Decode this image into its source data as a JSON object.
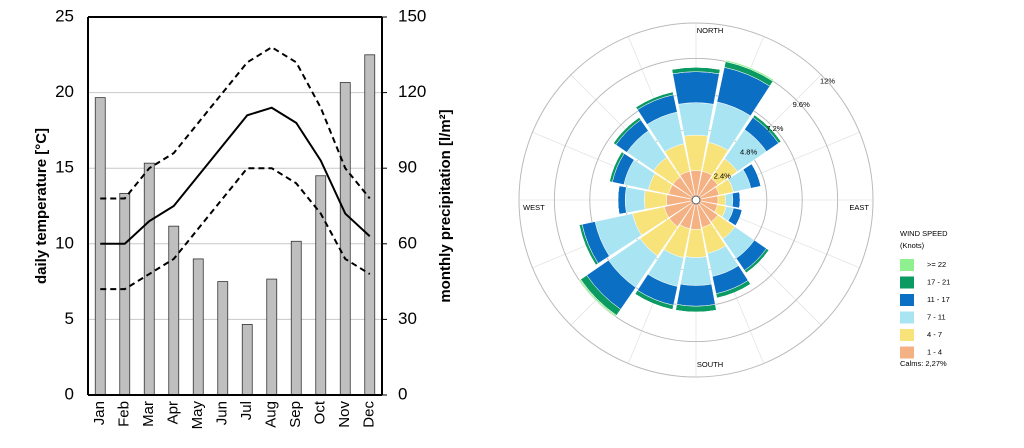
{
  "chart_data": [
    {
      "type": "combo",
      "ylabel": "daily temperature [°C]",
      "y2label": "monthly precipitation [l/m²]",
      "categories": [
        "Jan",
        "Feb",
        "Mar",
        "Apr",
        "May",
        "Jun",
        "Jul",
        "Aug",
        "Sep",
        "Oct",
        "Nov",
        "Dec"
      ],
      "ylim": [
        0,
        25
      ],
      "yticks": [
        0,
        5,
        10,
        15,
        20,
        25
      ],
      "y2lim": [
        0,
        150
      ],
      "y2ticks": [
        0,
        30,
        60,
        90,
        120,
        150
      ],
      "grid": true,
      "series": [
        {
          "type": "bar",
          "axis": "y2",
          "color": "#bfbfbf",
          "values": [
            118,
            80,
            92,
            67,
            54,
            45,
            28,
            46,
            61,
            87,
            124,
            135
          ]
        },
        {
          "type": "line",
          "color": "#000000",
          "dash": "dashed",
          "values": [
            13,
            13,
            15,
            16,
            18,
            20,
            22,
            23,
            22,
            19,
            15,
            13
          ]
        },
        {
          "type": "line",
          "color": "#000000",
          "dash": "solid",
          "values": [
            10,
            10,
            11.5,
            12.5,
            14.5,
            16.5,
            18.5,
            19,
            18,
            15.5,
            12,
            10.5
          ]
        },
        {
          "type": "line",
          "color": "#000000",
          "dash": "dashed",
          "values": [
            7,
            7,
            8,
            9,
            11,
            13,
            15,
            15,
            14,
            12,
            9,
            8
          ]
        }
      ]
    },
    {
      "type": "windrose",
      "directions": [
        "NORTH",
        null,
        null,
        null,
        "EAST",
        null,
        null,
        null,
        "SOUTH",
        null,
        null,
        null,
        "WEST",
        null,
        null,
        null
      ],
      "rlim": [
        0,
        12
      ],
      "rticks": [
        {
          "value": 2.4,
          "label": "2.4%"
        },
        {
          "value": 4.8,
          "label": "4.8%"
        },
        {
          "value": 7.2,
          "label": "7.2%"
        },
        {
          "value": 9.6,
          "label": "9.6%"
        },
        {
          "value": 12,
          "label": "12%"
        }
      ],
      "legend_title": "WIND SPEED",
      "legend_subtitle": "(Knots)",
      "calms": "Calms: 2,27%",
      "series": [
        {
          "name": "1 - 4",
          "color": "#f4b183",
          "values": [
            2.0,
            2.0,
            1.8,
            1.6,
            1.5,
            1.5,
            1.8,
            1.9,
            2.0,
            2.0,
            2.2,
            2.2,
            2.0,
            1.9,
            1.9,
            2.0
          ]
        },
        {
          "name": "4 - 7",
          "color": "#f8e27a",
          "values": [
            2.4,
            2.0,
            1.6,
            1.0,
            0.5,
            0.6,
            1.4,
            1.8,
            1.9,
            2.0,
            2.4,
            2.2,
            1.5,
            1.4,
            1.6,
            1.9
          ]
        },
        {
          "name": "7 - 11",
          "color": "#a9e4f3",
          "values": [
            2.2,
            2.8,
            2.4,
            1.2,
            0.5,
            0.5,
            1.6,
            1.6,
            1.9,
            2.0,
            2.6,
            2.6,
            1.3,
            1.7,
            2.2,
            2.2
          ]
        },
        {
          "name": "11 - 17",
          "color": "#0b6fc4",
          "values": [
            2.1,
            2.4,
            1.0,
            0.7,
            0.5,
            0.6,
            1.0,
            1.2,
            1.4,
            1.3,
            1.8,
            0.9,
            0.5,
            0.8,
            0.9,
            1.2
          ]
        },
        {
          "name": "17 - 21",
          "color": "#0a9a62",
          "values": [
            0.3,
            0.4,
            0.2,
            0,
            0,
            0,
            0.2,
            0.3,
            0.4,
            0.3,
            0.5,
            0.2,
            0,
            0.2,
            0.2,
            0.2
          ]
        },
        {
          "name": ">= 22",
          "color": "#8ef08e",
          "values": [
            0,
            0.1,
            0,
            0,
            0,
            0,
            0,
            0,
            0,
            0,
            0.1,
            0,
            0,
            0,
            0,
            0
          ]
        }
      ]
    }
  ]
}
